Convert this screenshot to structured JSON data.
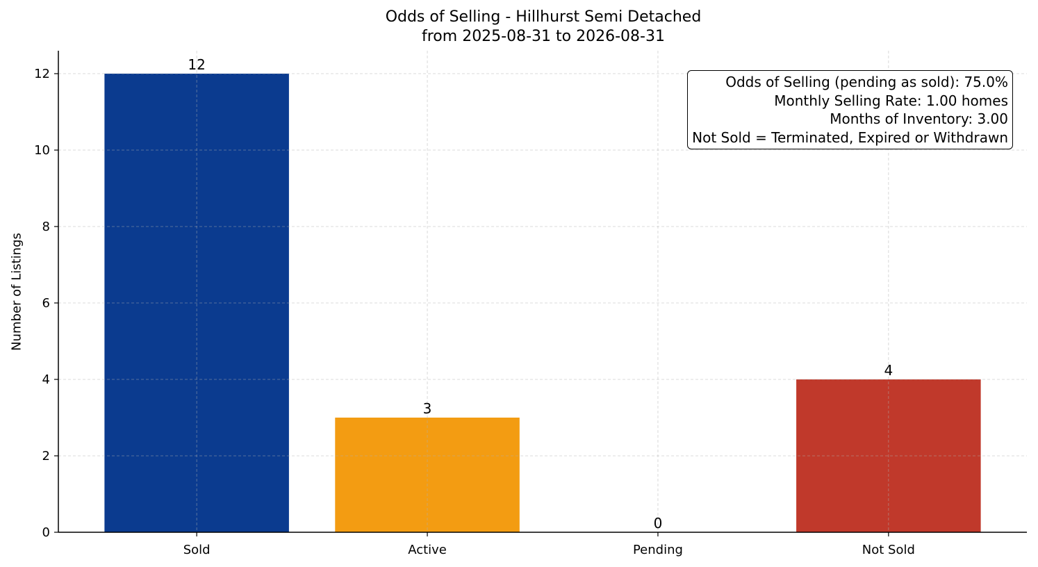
{
  "chart_data": {
    "type": "bar",
    "title": "Odds of Selling - Hillhurst Semi Detached",
    "subtitle": "from 2025-08-31 to 2026-08-31",
    "xlabel": "",
    "ylabel": "Number of Listings",
    "categories": [
      "Sold",
      "Active",
      "Pending",
      "Not Sold"
    ],
    "values": [
      12,
      3,
      0,
      4
    ],
    "bar_colors": [
      "#0b3b8f",
      "#f39c12",
      "#f39c12",
      "#c0392b"
    ],
    "ylim": [
      0,
      12.6
    ],
    "yticks": [
      0,
      2,
      4,
      6,
      8,
      10,
      12
    ],
    "grid": true,
    "annotation_lines": [
      "Odds of Selling (pending as sold): 75.0%",
      "Monthly Selling Rate: 1.00 homes",
      "Months of Inventory: 3.00",
      "Not Sold = Terminated, Expired or Withdrawn"
    ],
    "annotation_placement": "top-right"
  }
}
